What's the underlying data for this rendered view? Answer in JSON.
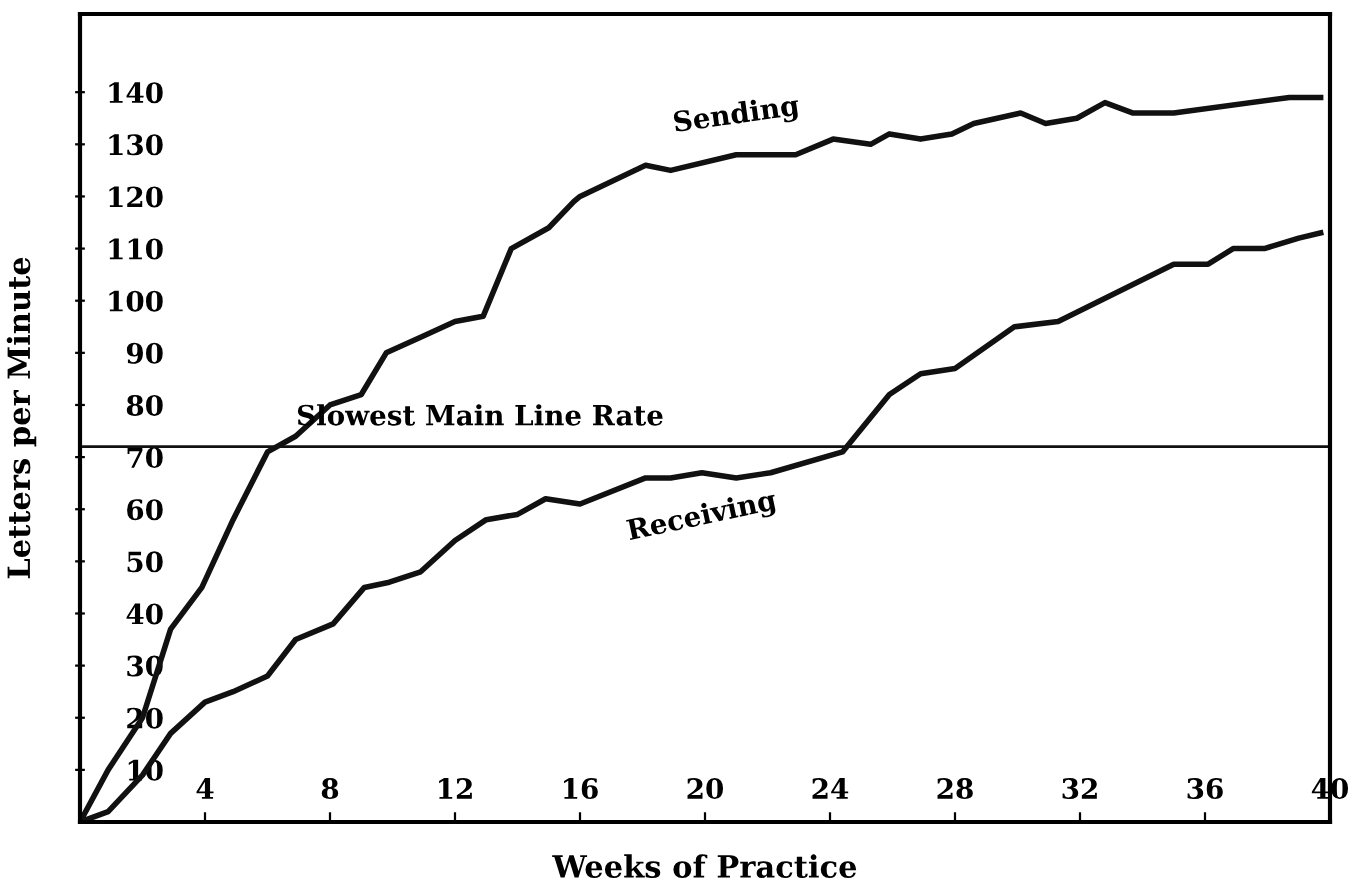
{
  "chart_data": {
    "type": "line",
    "xlabel": "Weeks of Practice",
    "ylabel": "Letters per Minute",
    "xlim": [
      0,
      40
    ],
    "ylim": [
      0,
      155
    ],
    "xticks": [
      4,
      8,
      12,
      16,
      20,
      24,
      28,
      32,
      36,
      40
    ],
    "yticks": [
      10,
      20,
      30,
      40,
      50,
      60,
      70,
      80,
      90,
      100,
      110,
      120,
      130,
      140
    ],
    "grid": false,
    "legend": false,
    "marker": "none",
    "line_style": "solid",
    "series": [
      {
        "name": "Sending",
        "color": "#111111",
        "x": [
          0,
          0.9,
          2.0,
          2.9,
          3.9,
          4.9,
          6.0,
          6.9,
          8.0,
          9.0,
          9.8,
          10.9,
          12.0,
          12.9,
          13.8,
          15.0,
          15.8,
          16.0,
          18.1,
          18.9,
          21.0,
          22.2,
          22.9,
          24.1,
          25.3,
          25.9,
          26.9,
          27.9,
          28.6,
          30.1,
          30.9,
          31.9,
          32.8,
          33.7,
          35.0,
          38.7,
          39.7
        ],
        "values": [
          0,
          10,
          20,
          37,
          45,
          58,
          71,
          74,
          80,
          82,
          90,
          93,
          96,
          97,
          110,
          114,
          119,
          120,
          126,
          125,
          128,
          128,
          128,
          131,
          130,
          132,
          131,
          132,
          134,
          136,
          134,
          135,
          138,
          136,
          136,
          139,
          139
        ]
      },
      {
        "name": "Receiving",
        "color": "#111111",
        "x": [
          0,
          0.9,
          2.0,
          2.9,
          4.0,
          4.9,
          6.0,
          6.9,
          8.1,
          9.1,
          9.9,
          10.9,
          12.0,
          13.0,
          14.0,
          14.9,
          16.0,
          18.1,
          18.9,
          19.9,
          21.0,
          22.1,
          24.4,
          25.9,
          26.9,
          28.0,
          29.9,
          31.3,
          35.0,
          36.1,
          36.9,
          37.9,
          39.0,
          39.7
        ],
        "values": [
          0,
          2,
          9,
          17,
          23,
          25,
          28,
          35,
          38,
          45,
          46,
          48,
          54,
          58,
          59,
          62,
          61,
          66,
          66,
          67,
          66,
          67,
          71,
          82,
          86,
          87,
          95,
          96,
          107,
          107,
          110,
          110,
          112,
          113
        ]
      }
    ],
    "ref_lines": [
      {
        "axis": "y",
        "value": 72,
        "label": "Slowest Main Line Rate",
        "color": "#111111",
        "line_style": "solid"
      }
    ]
  }
}
